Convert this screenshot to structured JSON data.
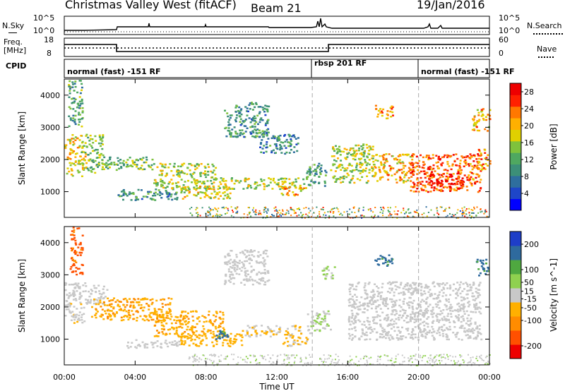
{
  "header": {
    "station": "Christmas Valley West (fitACF)",
    "beam": "Beam 21",
    "date": "19/Jan/2016"
  },
  "strip_panels": {
    "nsky": {
      "left_label": "N.Sky",
      "right_label": "N.Search",
      "left_ticks": [
        "10^5",
        "10^0"
      ],
      "right_ticks": [
        "10^5",
        "10^0"
      ]
    },
    "freq": {
      "left_label_1": "Freq.",
      "left_label_2": "[MHz]",
      "right_label": "Nave",
      "left_ticks": [
        "18",
        "8"
      ],
      "right_ticks": [
        "60",
        "0"
      ]
    },
    "cpid": {
      "label": "CPID",
      "segments": [
        {
          "name": "normal (fast) -151 RF",
          "start": 0,
          "end": 14.0
        },
        {
          "name": "rbsp 201 RF",
          "start": 14.0,
          "end": 20.0
        },
        {
          "name": "normal (fast) -151 RF",
          "start": 20.0,
          "end": 24.0
        }
      ]
    }
  },
  "chart_data": [
    {
      "type": "heatmap",
      "title": "Power",
      "xlabel": "Time UT",
      "ylabel": "Slant Range [km]",
      "xlim": [
        0,
        24
      ],
      "ylim": [
        200,
        4500
      ],
      "x_ticks": [
        "00:00",
        "04:00",
        "08:00",
        "12:00",
        "16:00",
        "20:00",
        "00:00"
      ],
      "y_ticks": [
        1000,
        2000,
        3000,
        4000
      ],
      "colorbar": {
        "label": "Power [dB]",
        "ticks": [
          4,
          8,
          12,
          16,
          20,
          24,
          28
        ],
        "range": [
          0,
          30
        ],
        "colors": [
          "#0000ff",
          "#1e46c8",
          "#2e6e9e",
          "#3c8f78",
          "#4fa860",
          "#7fc23c",
          "#e0d000",
          "#ffb000",
          "#ff7800",
          "#ff2000",
          "#ee0000"
        ]
      },
      "regions": [
        {
          "x": [
            0.0,
            1.2
          ],
          "y": [
            1500,
            2800
          ],
          "value": 18
        },
        {
          "x": [
            0.2,
            1.0
          ],
          "y": [
            3000,
            4500
          ],
          "value": 12
        },
        {
          "x": [
            1.2,
            2.2
          ],
          "y": [
            1600,
            2800
          ],
          "value": 14
        },
        {
          "x": [
            2.2,
            5.0
          ],
          "y": [
            1700,
            2100
          ],
          "value": 13
        },
        {
          "x": [
            3.0,
            6.5
          ],
          "y": [
            750,
            1100
          ],
          "value": 10
        },
        {
          "x": [
            5.0,
            8.5
          ],
          "y": [
            1100,
            1900
          ],
          "value": 16
        },
        {
          "x": [
            6.5,
            9.5
          ],
          "y": [
            800,
            1200
          ],
          "value": 18
        },
        {
          "x": [
            8.5,
            13.5
          ],
          "y": [
            1100,
            1450
          ],
          "value": 16
        },
        {
          "x": [
            9.0,
            11.5
          ],
          "y": [
            2700,
            3800
          ],
          "value": 10
        },
        {
          "x": [
            11.0,
            13.2
          ],
          "y": [
            2200,
            2800
          ],
          "value": 9
        },
        {
          "x": [
            12.2,
            13.6
          ],
          "y": [
            900,
            1200
          ],
          "value": 20
        },
        {
          "x": [
            13.6,
            14.8
          ],
          "y": [
            1200,
            1900
          ],
          "value": 10
        },
        {
          "x": [
            15.0,
            17.5
          ],
          "y": [
            1300,
            2500
          ],
          "value": 16
        },
        {
          "x": [
            17.5,
            19.5
          ],
          "y": [
            1300,
            2200
          ],
          "value": 20
        },
        {
          "x": [
            19.5,
            23.5
          ],
          "y": [
            1000,
            2200
          ],
          "value": 24
        },
        {
          "x": [
            20.5,
            22.5
          ],
          "y": [
            1100,
            1600
          ],
          "value": 28
        },
        {
          "x": [
            17.5,
            18.5
          ],
          "y": [
            3300,
            3700
          ],
          "value": 22
        },
        {
          "x": [
            23.0,
            24.0
          ],
          "y": [
            2900,
            3600
          ],
          "value": 20
        },
        {
          "x": [
            23.3,
            24.0
          ],
          "y": [
            1700,
            2400
          ],
          "value": 22
        }
      ]
    },
    {
      "type": "heatmap",
      "title": "Velocity",
      "xlabel": "Time UT",
      "ylabel": "Slant Range [km]",
      "xlim": [
        0,
        24
      ],
      "ylim": [
        200,
        4500
      ],
      "x_ticks": [
        "00:00",
        "04:00",
        "08:00",
        "12:00",
        "16:00",
        "20:00",
        "00:00"
      ],
      "y_ticks": [
        1000,
        2000,
        3000,
        4000
      ],
      "colorbar": {
        "label": "Velocity [m s^-1]",
        "ticks": [
          200,
          100,
          50,
          15,
          -15,
          -50,
          -100,
          -200
        ],
        "range": [
          -250,
          250
        ],
        "colors": [
          "#ee0000",
          "#ff5000",
          "#ff8c00",
          "#ffb000",
          "#c8c8c8",
          "#8fd14f",
          "#4fa840",
          "#2e6a9e",
          "#1e3ec8"
        ]
      },
      "regions": [
        {
          "x": [
            0.0,
            1.2
          ],
          "y": [
            1500,
            2800
          ],
          "value": -10
        },
        {
          "x": [
            0.3,
            1.0
          ],
          "y": [
            3000,
            4500
          ],
          "value": -150
        },
        {
          "x": [
            1.2,
            2.4
          ],
          "y": [
            2100,
            2700
          ],
          "value": -10
        },
        {
          "x": [
            1.5,
            6.0
          ],
          "y": [
            1600,
            2300
          ],
          "value": -80
        },
        {
          "x": [
            3.5,
            6.5
          ],
          "y": [
            750,
            1000
          ],
          "value": 0
        },
        {
          "x": [
            5.0,
            9.0
          ],
          "y": [
            1100,
            1900
          ],
          "value": -70
        },
        {
          "x": [
            6.5,
            10.0
          ],
          "y": [
            800,
            1200
          ],
          "value": -60
        },
        {
          "x": [
            8.5,
            9.2
          ],
          "y": [
            1000,
            1300
          ],
          "value": 150
        },
        {
          "x": [
            9.0,
            11.5
          ],
          "y": [
            2700,
            3800
          ],
          "value": 0
        },
        {
          "x": [
            10.0,
            13.5
          ],
          "y": [
            1100,
            1450
          ],
          "value": -30
        },
        {
          "x": [
            12.3,
            13.7
          ],
          "y": [
            800,
            1150
          ],
          "value": -30
        },
        {
          "x": [
            13.7,
            15.0
          ],
          "y": [
            1200,
            1900
          ],
          "value": 30
        },
        {
          "x": [
            14.5,
            15.3
          ],
          "y": [
            2900,
            3300
          ],
          "value": 30
        },
        {
          "x": [
            16.0,
            23.5
          ],
          "y": [
            1000,
            2800
          ],
          "value": 0
        },
        {
          "x": [
            17.5,
            18.5
          ],
          "y": [
            3300,
            3700
          ],
          "value": 150
        },
        {
          "x": [
            23.2,
            24.0
          ],
          "y": [
            3000,
            3500
          ],
          "value": 150
        }
      ],
      "ground_scatter": {
        "x": [
          7.0,
          24.0
        ],
        "y": [
          200,
          550
        ],
        "value": 20
      }
    }
  ]
}
